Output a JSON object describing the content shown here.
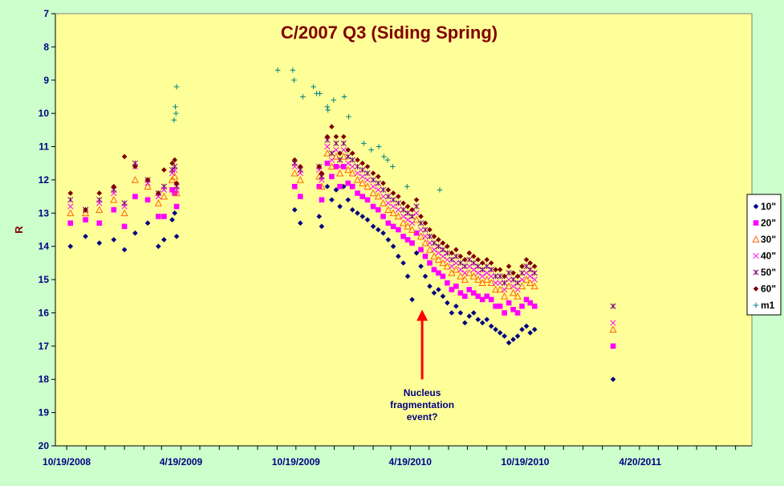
{
  "chart_data": {
    "type": "scatter",
    "title": "C/2007 Q3 (Siding Spring)",
    "xlabel": "",
    "ylabel": "R",
    "ylim": [
      7,
      20
    ],
    "y_inverted": true,
    "y_ticks": [
      7,
      8,
      9,
      10,
      11,
      12,
      13,
      14,
      15,
      16,
      17,
      18,
      19,
      20
    ],
    "xlim": [
      "2008-10-01",
      "2011-10-15"
    ],
    "x_tick_labels": [
      {
        "label": "10/19/2008",
        "date": "2008-10-19"
      },
      {
        "label": "4/19/2009",
        "date": "2009-04-19"
      },
      {
        "label": "10/19/2009",
        "date": "2009-10-19"
      },
      {
        "label": "4/19/2010",
        "date": "2010-04-19"
      },
      {
        "label": "10/19/2010",
        "date": "2010-10-19"
      },
      {
        "label": "4/20/2011",
        "date": "2011-04-20"
      }
    ],
    "grid": false,
    "plot_background": "#ffff99",
    "page_background": "#ccffcc",
    "legend_position": "right",
    "series": [
      {
        "name": "10\"",
        "marker": "diamond",
        "color": "#000080",
        "dates": [
          "2008-10-25",
          "2008-11-18",
          "2008-12-10",
          "2009-01-02",
          "2009-01-19",
          "2009-02-05",
          "2009-02-25",
          "2009-03-14",
          "2009-03-23",
          "2009-04-05",
          "2009-04-09",
          "2009-04-12",
          "2009-10-17",
          "2009-10-26",
          "2009-11-25",
          "2009-11-29",
          "2009-12-08",
          "2009-12-15",
          "2009-12-22",
          "2009-12-28",
          "2010-01-03",
          "2010-01-10",
          "2010-01-17",
          "2010-01-25",
          "2010-02-02",
          "2010-02-10",
          "2010-02-19",
          "2010-02-27",
          "2010-03-07",
          "2010-03-15",
          "2010-03-23",
          "2010-03-31",
          "2010-04-08",
          "2010-04-15",
          "2010-04-22",
          "2010-04-29",
          "2010-05-06",
          "2010-05-13",
          "2010-05-20",
          "2010-05-27",
          "2010-06-03",
          "2010-06-10",
          "2010-06-17",
          "2010-06-24",
          "2010-07-01",
          "2010-07-08",
          "2010-07-15",
          "2010-07-22",
          "2010-07-29",
          "2010-08-05",
          "2010-08-12",
          "2010-08-19",
          "2010-08-26",
          "2010-09-02",
          "2010-09-09",
          "2010-09-16",
          "2010-09-23",
          "2010-09-30",
          "2010-10-07",
          "2010-10-14",
          "2010-10-21",
          "2010-10-27",
          "2010-11-03",
          "2011-03-08"
        ],
        "values": [
          14.0,
          13.7,
          13.9,
          13.8,
          14.1,
          13.6,
          13.3,
          14.0,
          13.8,
          13.2,
          13.0,
          13.7,
          12.9,
          13.3,
          13.1,
          13.4,
          12.2,
          12.6,
          12.3,
          12.8,
          12.2,
          12.6,
          12.9,
          13.0,
          13.1,
          13.2,
          13.4,
          13.5,
          13.6,
          13.8,
          14.0,
          14.3,
          14.5,
          14.9,
          15.6,
          14.2,
          14.6,
          14.9,
          15.2,
          15.4,
          15.3,
          15.5,
          15.7,
          16.0,
          15.8,
          16.0,
          16.3,
          16.1,
          16.0,
          16.2,
          16.3,
          16.2,
          16.4,
          16.5,
          16.6,
          16.7,
          16.9,
          16.8,
          16.7,
          16.5,
          16.4,
          16.6,
          16.5,
          18.0
        ]
      },
      {
        "name": "20\"",
        "marker": "square",
        "color": "#ff00ff",
        "dates": [
          "2008-10-25",
          "2008-11-18",
          "2008-12-10",
          "2009-01-02",
          "2009-01-19",
          "2009-02-05",
          "2009-02-25",
          "2009-03-14",
          "2009-03-23",
          "2009-04-05",
          "2009-04-09",
          "2009-04-12",
          "2009-10-17",
          "2009-10-26",
          "2009-11-25",
          "2009-11-29",
          "2009-12-08",
          "2009-12-15",
          "2009-12-22",
          "2009-12-28",
          "2010-01-03",
          "2010-01-10",
          "2010-01-17",
          "2010-01-25",
          "2010-02-02",
          "2010-02-10",
          "2010-02-19",
          "2010-02-27",
          "2010-03-07",
          "2010-03-15",
          "2010-03-23",
          "2010-03-31",
          "2010-04-08",
          "2010-04-15",
          "2010-04-22",
          "2010-04-29",
          "2010-05-06",
          "2010-05-13",
          "2010-05-20",
          "2010-05-27",
          "2010-06-03",
          "2010-06-10",
          "2010-06-17",
          "2010-06-24",
          "2010-07-01",
          "2010-07-08",
          "2010-07-15",
          "2010-07-22",
          "2010-07-29",
          "2010-08-05",
          "2010-08-12",
          "2010-08-19",
          "2010-08-26",
          "2010-09-02",
          "2010-09-09",
          "2010-09-16",
          "2010-09-23",
          "2010-09-30",
          "2010-10-07",
          "2010-10-14",
          "2010-10-21",
          "2010-10-27",
          "2010-11-03",
          "2011-03-08"
        ],
        "values": [
          13.3,
          13.2,
          13.3,
          12.9,
          13.4,
          12.5,
          12.6,
          13.1,
          13.1,
          12.3,
          12.4,
          12.8,
          12.2,
          12.5,
          12.2,
          12.6,
          11.5,
          11.9,
          11.6,
          12.2,
          11.6,
          12.1,
          12.2,
          12.4,
          12.5,
          12.6,
          12.8,
          12.9,
          13.1,
          13.3,
          13.4,
          13.5,
          13.7,
          13.8,
          13.9,
          13.6,
          14.1,
          14.3,
          14.5,
          14.7,
          14.8,
          14.9,
          15.1,
          15.3,
          15.2,
          15.4,
          15.5,
          15.3,
          15.4,
          15.5,
          15.6,
          15.5,
          15.6,
          15.8,
          15.8,
          16.0,
          15.7,
          15.9,
          16.0,
          15.8,
          15.6,
          15.7,
          15.8,
          17.0
        ]
      },
      {
        "name": "30\"",
        "marker": "triangle",
        "color": "#ff6600",
        "dates": [
          "2008-10-25",
          "2008-11-18",
          "2008-12-10",
          "2009-01-02",
          "2009-01-19",
          "2009-02-05",
          "2009-02-25",
          "2009-03-14",
          "2009-03-23",
          "2009-04-05",
          "2009-04-09",
          "2009-04-12",
          "2009-10-17",
          "2009-10-26",
          "2009-11-25",
          "2009-11-29",
          "2009-12-08",
          "2009-12-15",
          "2009-12-22",
          "2009-12-28",
          "2010-01-03",
          "2010-01-10",
          "2010-01-17",
          "2010-01-25",
          "2010-02-02",
          "2010-02-10",
          "2010-02-19",
          "2010-02-27",
          "2010-03-07",
          "2010-03-15",
          "2010-03-23",
          "2010-03-31",
          "2010-04-08",
          "2010-04-15",
          "2010-04-22",
          "2010-04-29",
          "2010-05-06",
          "2010-05-13",
          "2010-05-20",
          "2010-05-27",
          "2010-06-03",
          "2010-06-10",
          "2010-06-17",
          "2010-06-24",
          "2010-07-01",
          "2010-07-08",
          "2010-07-15",
          "2010-07-22",
          "2010-07-29",
          "2010-08-05",
          "2010-08-12",
          "2010-08-19",
          "2010-08-26",
          "2010-09-02",
          "2010-09-09",
          "2010-09-16",
          "2010-09-23",
          "2010-09-30",
          "2010-10-07",
          "2010-10-14",
          "2010-10-21",
          "2010-10-27",
          "2010-11-03",
          "2011-03-08"
        ],
        "values": [
          13.0,
          13.0,
          12.9,
          12.6,
          13.0,
          12.0,
          12.2,
          12.7,
          12.5,
          12.0,
          11.9,
          12.4,
          11.8,
          12.0,
          11.9,
          12.2,
          11.2,
          11.6,
          11.3,
          11.8,
          11.3,
          11.7,
          11.8,
          12.0,
          12.1,
          12.2,
          12.4,
          12.5,
          12.7,
          12.9,
          13.0,
          13.1,
          13.3,
          13.4,
          13.5,
          13.2,
          13.7,
          13.9,
          14.1,
          14.3,
          14.4,
          14.5,
          14.6,
          14.8,
          14.7,
          14.9,
          15.0,
          14.8,
          14.9,
          15.0,
          15.1,
          15.0,
          15.1,
          15.3,
          15.3,
          15.5,
          15.2,
          15.4,
          15.5,
          15.2,
          15.0,
          15.1,
          15.2,
          16.5
        ]
      },
      {
        "name": "40\"",
        "marker": "x",
        "color": "#ff00ff",
        "dates": [
          "2008-10-25",
          "2008-11-18",
          "2008-12-10",
          "2009-01-02",
          "2009-01-19",
          "2009-02-05",
          "2009-02-25",
          "2009-03-14",
          "2009-03-23",
          "2009-04-05",
          "2009-04-09",
          "2009-04-12",
          "2009-10-17",
          "2009-10-26",
          "2009-11-25",
          "2009-11-29",
          "2009-12-08",
          "2009-12-15",
          "2009-12-22",
          "2009-12-28",
          "2010-01-03",
          "2010-01-10",
          "2010-01-17",
          "2010-01-25",
          "2010-02-02",
          "2010-02-10",
          "2010-02-19",
          "2010-02-27",
          "2010-03-07",
          "2010-03-15",
          "2010-03-23",
          "2010-03-31",
          "2010-04-08",
          "2010-04-15",
          "2010-04-22",
          "2010-04-29",
          "2010-05-06",
          "2010-05-13",
          "2010-05-20",
          "2010-05-27",
          "2010-06-03",
          "2010-06-10",
          "2010-06-17",
          "2010-06-24",
          "2010-07-01",
          "2010-07-08",
          "2010-07-15",
          "2010-07-22",
          "2010-07-29",
          "2010-08-05",
          "2010-08-12",
          "2010-08-19",
          "2010-08-26",
          "2010-09-02",
          "2010-09-09",
          "2010-09-16",
          "2010-09-23",
          "2010-09-30",
          "2010-10-07",
          "2010-10-14",
          "2010-10-21",
          "2010-10-27",
          "2010-11-03",
          "2011-03-08"
        ],
        "values": [
          12.8,
          12.9,
          12.7,
          12.4,
          12.8,
          11.6,
          12.1,
          12.5,
          12.3,
          11.8,
          11.7,
          12.3,
          11.6,
          11.8,
          11.7,
          12.0,
          11.0,
          11.4,
          11.1,
          11.6,
          11.1,
          11.5,
          11.6,
          11.8,
          11.9,
          12.0,
          12.2,
          12.3,
          12.5,
          12.7,
          12.8,
          12.9,
          13.1,
          13.2,
          13.3,
          13.0,
          13.5,
          13.7,
          13.9,
          14.1,
          14.2,
          14.3,
          14.4,
          14.6,
          14.5,
          14.7,
          14.8,
          14.6,
          14.7,
          14.8,
          14.9,
          14.8,
          14.9,
          15.1,
          15.1,
          15.3,
          15.0,
          15.2,
          15.3,
          15.0,
          14.8,
          14.9,
          15.0,
          16.3
        ]
      },
      {
        "name": "50\"",
        "marker": "star",
        "color": "#800080",
        "dates": [
          "2008-10-25",
          "2008-11-18",
          "2008-12-10",
          "2009-01-02",
          "2009-01-19",
          "2009-02-05",
          "2009-02-25",
          "2009-03-14",
          "2009-03-23",
          "2009-04-05",
          "2009-04-09",
          "2009-04-12",
          "2009-10-17",
          "2009-10-26",
          "2009-11-25",
          "2009-11-29",
          "2009-12-08",
          "2009-12-15",
          "2009-12-22",
          "2009-12-28",
          "2010-01-03",
          "2010-01-10",
          "2010-01-17",
          "2010-01-25",
          "2010-02-02",
          "2010-02-10",
          "2010-02-19",
          "2010-02-27",
          "2010-03-07",
          "2010-03-15",
          "2010-03-23",
          "2010-03-31",
          "2010-04-08",
          "2010-04-15",
          "2010-04-22",
          "2010-04-29",
          "2010-05-06",
          "2010-05-13",
          "2010-05-20",
          "2010-05-27",
          "2010-06-03",
          "2010-06-10",
          "2010-06-17",
          "2010-06-24",
          "2010-07-01",
          "2010-07-08",
          "2010-07-15",
          "2010-07-22",
          "2010-07-29",
          "2010-08-05",
          "2010-08-12",
          "2010-08-19",
          "2010-08-26",
          "2010-09-02",
          "2010-09-09",
          "2010-09-16",
          "2010-09-23",
          "2010-09-30",
          "2010-10-07",
          "2010-10-14",
          "2010-10-21",
          "2010-10-27",
          "2010-11-03",
          "2011-03-08"
        ],
        "values": [
          12.6,
          12.9,
          12.6,
          12.3,
          12.7,
          11.5,
          12.0,
          12.4,
          12.2,
          11.7,
          11.6,
          12.2,
          11.5,
          11.7,
          11.6,
          11.9,
          10.8,
          11.2,
          10.9,
          11.4,
          10.9,
          11.3,
          11.4,
          11.6,
          11.7,
          11.8,
          12.0,
          12.1,
          12.3,
          12.5,
          12.6,
          12.7,
          12.9,
          13.0,
          13.1,
          12.8,
          13.3,
          13.5,
          13.7,
          13.9,
          14.0,
          14.1,
          14.2,
          14.4,
          14.3,
          14.5,
          14.6,
          14.4,
          14.5,
          14.6,
          14.7,
          14.6,
          14.7,
          14.9,
          14.9,
          15.1,
          14.8,
          15.0,
          15.1,
          14.8,
          14.6,
          14.7,
          14.8,
          15.8
        ]
      },
      {
        "name": "60\"",
        "marker": "diamond",
        "color": "#800000",
        "dates": [
          "2008-10-25",
          "2008-11-18",
          "2008-12-10",
          "2009-01-02",
          "2009-01-19",
          "2009-02-05",
          "2009-02-25",
          "2009-03-14",
          "2009-03-23",
          "2009-04-05",
          "2009-04-09",
          "2009-04-12",
          "2009-10-17",
          "2009-10-26",
          "2009-11-25",
          "2009-11-29",
          "2009-12-08",
          "2009-12-15",
          "2009-12-22",
          "2009-12-28",
          "2010-01-03",
          "2010-01-10",
          "2010-01-17",
          "2010-01-25",
          "2010-02-02",
          "2010-02-10",
          "2010-02-19",
          "2010-02-27",
          "2010-03-07",
          "2010-03-15",
          "2010-03-23",
          "2010-03-31",
          "2010-04-08",
          "2010-04-15",
          "2010-04-22",
          "2010-04-29",
          "2010-05-06",
          "2010-05-13",
          "2010-05-20",
          "2010-05-27",
          "2010-06-03",
          "2010-06-10",
          "2010-06-17",
          "2010-06-24",
          "2010-07-01",
          "2010-07-08",
          "2010-07-15",
          "2010-07-22",
          "2010-07-29",
          "2010-08-05",
          "2010-08-12",
          "2010-08-19",
          "2010-08-26",
          "2010-09-02",
          "2010-09-09",
          "2010-09-16",
          "2010-09-23",
          "2010-09-30",
          "2010-10-07",
          "2010-10-14",
          "2010-10-21",
          "2010-10-27",
          "2010-11-03"
        ],
        "values": [
          12.4,
          12.9,
          12.4,
          12.2,
          11.3,
          11.6,
          12.0,
          12.4,
          11.7,
          11.5,
          11.4,
          12.1,
          11.4,
          11.6,
          11.6,
          11.8,
          10.7,
          10.4,
          10.7,
          11.2,
          10.7,
          11.1,
          11.2,
          11.4,
          11.5,
          11.6,
          11.8,
          11.9,
          12.1,
          12.3,
          12.4,
          12.5,
          12.7,
          12.8,
          12.9,
          12.6,
          13.1,
          13.3,
          13.5,
          13.7,
          13.8,
          13.9,
          14.0,
          14.2,
          14.1,
          14.3,
          14.4,
          14.2,
          14.3,
          14.4,
          14.5,
          14.4,
          14.5,
          14.7,
          14.7,
          14.9,
          14.6,
          14.8,
          14.9,
          14.6,
          14.4,
          14.5,
          14.6
        ]
      },
      {
        "name": "m1",
        "marker": "plus",
        "color": "#008080",
        "dates": [
          "2009-04-12",
          "2009-04-10",
          "2009-04-08",
          "2009-04-11",
          "2009-09-20",
          "2009-10-14",
          "2009-10-16",
          "2009-10-30",
          "2009-11-16",
          "2009-11-21",
          "2009-11-26",
          "2009-12-08",
          "2009-12-09",
          "2009-12-18",
          "2010-01-04",
          "2010-01-11",
          "2010-02-04",
          "2010-02-16",
          "2010-02-28",
          "2010-03-08",
          "2010-03-14",
          "2010-03-22",
          "2010-04-14",
          "2010-06-05"
        ],
        "values": [
          9.2,
          9.8,
          10.2,
          10.0,
          8.7,
          8.7,
          9.0,
          9.5,
          9.2,
          9.4,
          9.4,
          9.8,
          9.9,
          9.6,
          9.5,
          10.1,
          10.9,
          11.1,
          11.0,
          11.3,
          11.4,
          11.6,
          12.2,
          12.3
        ]
      }
    ],
    "annotations": [
      {
        "text_lines": [
          "Nucleus",
          "fragmentation",
          "event?"
        ],
        "arrow_at_date": "2010-05-08",
        "arrow_tip_value": 15.9,
        "arrow_tail_value": 18.0,
        "text_value": 18.5,
        "color": "#ff0000",
        "text_color": "#000080"
      }
    ]
  }
}
